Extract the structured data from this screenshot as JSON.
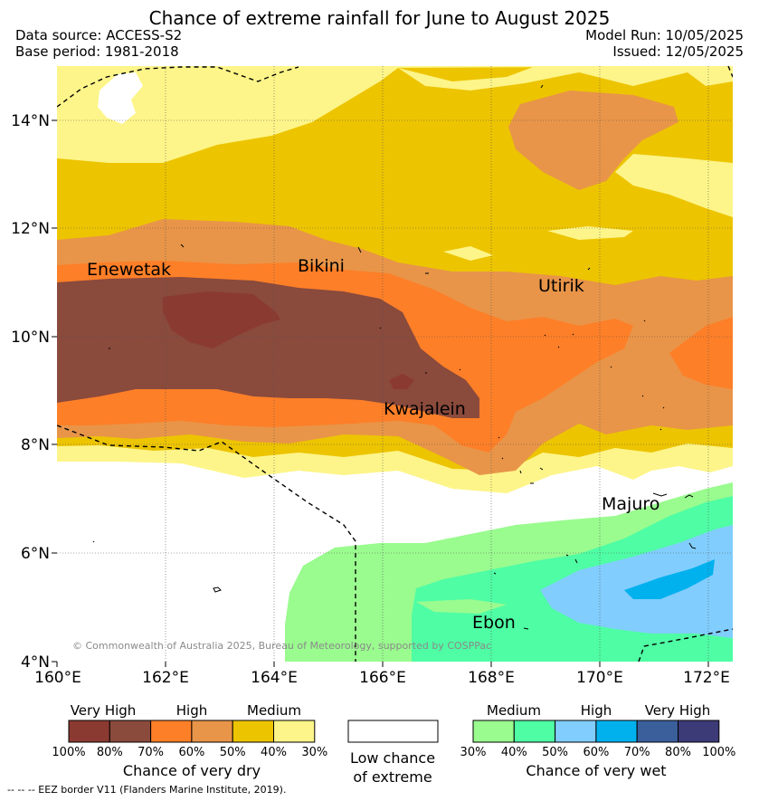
{
  "header": {
    "title": "Chance of extreme rainfall for June to August 2025",
    "data_source": "Data source: ACCESS-S2",
    "base_period": "Base period: 1981-2018",
    "model_run": "Model Run: 10/05/2025",
    "issued": "Issued: 12/05/2025"
  },
  "map": {
    "copyright": "© Commonwealth of Australia 2025, Bureau of Meteorology, supported by COSPPac",
    "lat_labels": [
      "14°N",
      "12°N",
      "10°N",
      "8°N",
      "6°N",
      "4°N"
    ],
    "lon_labels": [
      "160°E",
      "162°E",
      "164°E",
      "166°E",
      "168°E",
      "170°E",
      "172°E"
    ],
    "places": {
      "enewetak": "Enewetak",
      "bikini": "Bikini",
      "utirik": "Utirik",
      "kwajalein": "Kwajalein",
      "majuro": "Majuro",
      "ebon": "Ebon"
    }
  },
  "legend": {
    "dry": {
      "headers": [
        "Very High",
        "High",
        "Medium"
      ],
      "ticks": [
        "100%",
        "80%",
        "70%",
        "60%",
        "50%",
        "40%",
        "30%"
      ],
      "caption": "Chance of very dry",
      "colors": [
        "#8b3a31",
        "#8a4a3c",
        "#fd7f28",
        "#e89549",
        "#edc400",
        "#fdf589"
      ]
    },
    "neutral": {
      "caption_line1": "Low chance",
      "caption_line2": "of extreme",
      "color": "#ffffff"
    },
    "wet": {
      "headers": [
        "Medium",
        "High",
        "Very High"
      ],
      "ticks": [
        "30%",
        "40%",
        "50%",
        "60%",
        "70%",
        "80%",
        "100%"
      ],
      "caption": "Chance of very wet",
      "colors": [
        "#9afb8f",
        "#4ffda4",
        "#81cdfd",
        "#00b1ee",
        "#3a5f9b",
        "#3c3a77"
      ]
    }
  },
  "footer": {
    "eez_note": "--  --  -- EEZ border V11 (Flanders Marine Institute, 2019)."
  }
}
